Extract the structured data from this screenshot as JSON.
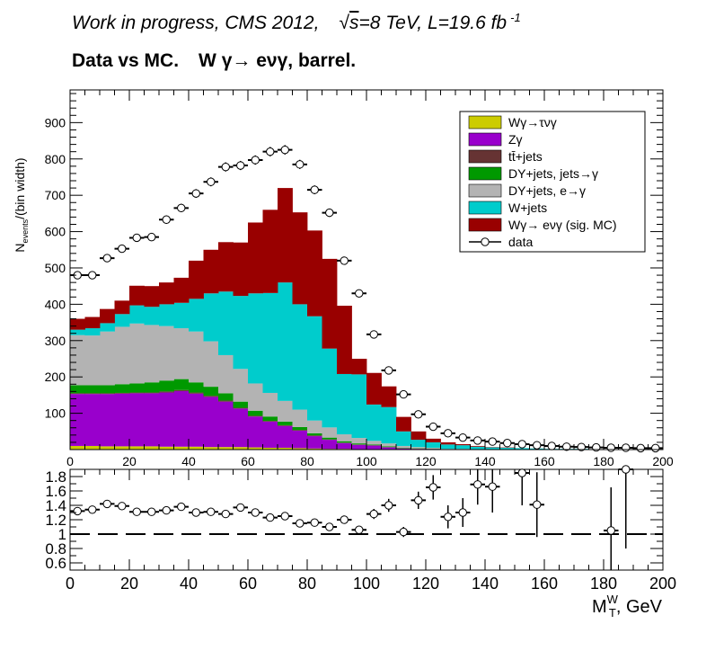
{
  "header": {
    "line1": {
      "prefix": "Work in progress, CMS 2012,",
      "sqrt_symbol": "√",
      "sqrt_arg": "s",
      "energy": "=8 TeV, L=19.6 fb",
      "exponent": "-1"
    },
    "line2": {
      "lead": "Data vs MC.",
      "process_w": "W",
      "process_rest": "γ→ eνγ, barrel."
    }
  },
  "axes": {
    "x_label_main": "M",
    "x_label_sub": "T",
    "x_label_sup": "W",
    "x_label_rest": ", GeV",
    "y_label_main": "N",
    "y_label_sub": "events",
    "y_label_rest": "/(bin width)"
  },
  "legend": {
    "entries": [
      {
        "label": "Wγ→τνγ",
        "color": "#cccc00",
        "kind": "box"
      },
      {
        "label": "Zγ",
        "color": "#9900cc",
        "kind": "box"
      },
      {
        "label": "tt̄+jets",
        "color": "#663333",
        "kind": "box"
      },
      {
        "label": "DY+jets, jets→γ",
        "color": "#009900",
        "kind": "box"
      },
      {
        "label": "DY+jets, e→γ",
        "color": "#b3b3b3",
        "kind": "box"
      },
      {
        "label": "W+jets",
        "color": "#00cccc",
        "kind": "box"
      },
      {
        "label": "Wγ→ eνγ (sig. MC)",
        "color": "#990000",
        "kind": "box"
      },
      {
        "label": "data",
        "color": "#000000",
        "kind": "marker"
      }
    ]
  },
  "chart_data": [
    {
      "type": "stacked-histogram",
      "title": "Data vs MC. W γ→ eνγ, barrel.",
      "xlabel": "M_T^W, GeV",
      "ylabel": "N_events/(bin width)",
      "xlim": [
        0,
        200
      ],
      "ylim": [
        0,
        990
      ],
      "bin_width": 5,
      "x_ticks": [
        0,
        20,
        40,
        60,
        80,
        100,
        120,
        140,
        160,
        180,
        200
      ],
      "y_ticks": [
        100,
        200,
        300,
        400,
        500,
        600,
        700,
        800,
        900
      ],
      "legend_position": "top-right",
      "grid": false,
      "stack_order": [
        "Wγ→τνγ",
        "Zγ",
        "tt̄+jets",
        "DY+jets, jets→γ",
        "DY+jets, e→γ",
        "W+jets",
        "Wγ→ eνγ (sig. MC)"
      ],
      "bin_centers": [
        2.5,
        7.5,
        12.5,
        17.5,
        22.5,
        27.5,
        32.5,
        37.5,
        42.5,
        47.5,
        52.5,
        57.5,
        62.5,
        67.5,
        72.5,
        77.5,
        82.5,
        87.5,
        92.5,
        97.5,
        102.5,
        107.5,
        112.5,
        117.5,
        122.5,
        127.5,
        132.5,
        137.5,
        142.5,
        147.5,
        152.5,
        157.5,
        162.5,
        167.5,
        172.5,
        177.5,
        182.5,
        187.5,
        192.5,
        197.5
      ],
      "series": [
        {
          "name": "Wγ→τνγ",
          "color": "#cccc00",
          "values": [
            10,
            10,
            9,
            9,
            9,
            9,
            8,
            8,
            8,
            7,
            7,
            7,
            6,
            5,
            5,
            4,
            3,
            2,
            2,
            1,
            1,
            1,
            0,
            0,
            0,
            0,
            0,
            0,
            0,
            0,
            0,
            0,
            0,
            0,
            0,
            0,
            0,
            0,
            0,
            0
          ]
        },
        {
          "name": "Zγ",
          "color": "#9900cc",
          "values": [
            143,
            143,
            144,
            145,
            146,
            146,
            149,
            153,
            146,
            138,
            125,
            106,
            85,
            72,
            60,
            48,
            34,
            25,
            16,
            12,
            10,
            5,
            3,
            2,
            2,
            1,
            1,
            0,
            0,
            0,
            0,
            0,
            0,
            0,
            0,
            0,
            0,
            0,
            0,
            0
          ]
        },
        {
          "name": "tt̄+jets",
          "color": "#663333",
          "values": [
            2,
            2,
            2,
            2,
            2,
            2,
            3,
            3,
            3,
            3,
            3,
            2,
            2,
            2,
            2,
            2,
            2,
            1,
            1,
            1,
            1,
            1,
            1,
            1,
            0,
            0,
            0,
            0,
            0,
            0,
            0,
            0,
            0,
            0,
            0,
            0,
            0,
            0,
            0,
            0
          ]
        },
        {
          "name": "DY+jets, jets→γ",
          "color": "#009900",
          "values": [
            22,
            22,
            22,
            24,
            25,
            28,
            30,
            30,
            28,
            25,
            20,
            17,
            14,
            12,
            10,
            8,
            6,
            5,
            4,
            3,
            2,
            2,
            1,
            1,
            1,
            0,
            0,
            0,
            0,
            0,
            0,
            0,
            0,
            0,
            0,
            0,
            0,
            0,
            0,
            0
          ]
        },
        {
          "name": "DY+jets, e→γ",
          "color": "#b3b3b3",
          "values": [
            138,
            137,
            148,
            158,
            165,
            158,
            150,
            140,
            140,
            125,
            105,
            90,
            75,
            65,
            57,
            48,
            35,
            28,
            19,
            15,
            10,
            8,
            5,
            3,
            2,
            1,
            1,
            0,
            0,
            0,
            0,
            0,
            0,
            0,
            0,
            0,
            0,
            0,
            0,
            0
          ]
        },
        {
          "name": "W+jets",
          "color": "#00cccc",
          "values": [
            15,
            20,
            23,
            35,
            50,
            50,
            60,
            70,
            90,
            132,
            175,
            201,
            248,
            275,
            326,
            290,
            287,
            217,
            166,
            175,
            100,
            100,
            40,
            20,
            15,
            12,
            10,
            8,
            6,
            5,
            4,
            3,
            2,
            2,
            2,
            1,
            1,
            1,
            1,
            1
          ]
        },
        {
          "name": "Wγ→ eνγ (sig. MC)",
          "color": "#990000",
          "values": [
            30,
            31,
            39,
            37,
            54,
            57,
            60,
            69,
            105,
            120,
            136,
            147,
            195,
            229,
            260,
            253,
            236,
            247,
            188,
            43,
            87,
            57,
            40,
            23,
            10,
            6,
            3,
            2,
            1,
            1,
            0,
            0,
            0,
            0,
            0,
            0,
            0,
            0,
            0,
            0
          ]
        }
      ],
      "data": {
        "name": "data",
        "values": [
          480,
          480,
          527,
          553,
          583,
          585,
          633,
          665,
          705,
          737,
          778,
          782,
          797,
          820,
          825,
          785,
          715,
          652,
          520,
          430,
          317,
          218,
          152,
          97,
          63,
          45,
          33,
          25,
          22,
          18,
          15,
          12,
          10,
          8,
          7,
          6,
          5,
          5,
          4,
          4
        ]
      }
    },
    {
      "type": "scatter",
      "title": "",
      "xlabel": "M_T^W, GeV",
      "ylabel": "",
      "xlim": [
        0,
        200
      ],
      "ylim": [
        0.5,
        1.9
      ],
      "reference_line": 1.0,
      "x_ticks": [
        0,
        20,
        40,
        60,
        80,
        100,
        120,
        140,
        160,
        180,
        200
      ],
      "y_ticks": [
        0.6,
        0.8,
        1.0,
        1.2,
        1.4,
        1.6,
        1.8
      ],
      "y_tick_labels": [
        "0.6",
        "0.8",
        "1",
        "1.2",
        "1.4",
        "1.6",
        "1.8"
      ],
      "points": [
        {
          "x": 2.5,
          "y": 1.32,
          "err": 0.03
        },
        {
          "x": 7.5,
          "y": 1.34,
          "err": 0.03
        },
        {
          "x": 12.5,
          "y": 1.42,
          "err": 0.03
        },
        {
          "x": 17.5,
          "y": 1.39,
          "err": 0.03
        },
        {
          "x": 22.5,
          "y": 1.31,
          "err": 0.03
        },
        {
          "x": 27.5,
          "y": 1.31,
          "err": 0.03
        },
        {
          "x": 32.5,
          "y": 1.33,
          "err": 0.03
        },
        {
          "x": 37.5,
          "y": 1.38,
          "err": 0.03
        },
        {
          "x": 42.5,
          "y": 1.3,
          "err": 0.03
        },
        {
          "x": 47.5,
          "y": 1.31,
          "err": 0.03
        },
        {
          "x": 52.5,
          "y": 1.28,
          "err": 0.03
        },
        {
          "x": 57.5,
          "y": 1.37,
          "err": 0.03
        },
        {
          "x": 62.5,
          "y": 1.3,
          "err": 0.03
        },
        {
          "x": 67.5,
          "y": 1.23,
          "err": 0.03
        },
        {
          "x": 72.5,
          "y": 1.25,
          "err": 0.03
        },
        {
          "x": 77.5,
          "y": 1.15,
          "err": 0.03
        },
        {
          "x": 82.5,
          "y": 1.16,
          "err": 0.03
        },
        {
          "x": 87.5,
          "y": 1.1,
          "err": 0.03
        },
        {
          "x": 92.5,
          "y": 1.2,
          "err": 0.04
        },
        {
          "x": 97.5,
          "y": 1.06,
          "err": 0.05
        },
        {
          "x": 102.5,
          "y": 1.28,
          "err": 0.07
        },
        {
          "x": 107.5,
          "y": 1.4,
          "err": 0.09
        },
        {
          "x": 112.5,
          "y": 1.03,
          "err": 0.07
        },
        {
          "x": 117.5,
          "y": 1.47,
          "err": 0.12
        },
        {
          "x": 122.5,
          "y": 1.65,
          "err": 0.17
        },
        {
          "x": 127.5,
          "y": 1.24,
          "err": 0.16
        },
        {
          "x": 132.5,
          "y": 1.3,
          "err": 0.2
        },
        {
          "x": 137.5,
          "y": 1.69,
          "err": 0.28
        },
        {
          "x": 142.5,
          "y": 1.66,
          "err": 0.36
        },
        {
          "x": 152.5,
          "y": 1.85,
          "err": 0.45
        },
        {
          "x": 157.5,
          "y": 1.41,
          "err": 0.45
        },
        {
          "x": 182.5,
          "y": 1.05,
          "err": 0.6
        },
        {
          "x": 187.5,
          "y": 1.9,
          "err": 1.1
        }
      ]
    }
  ]
}
